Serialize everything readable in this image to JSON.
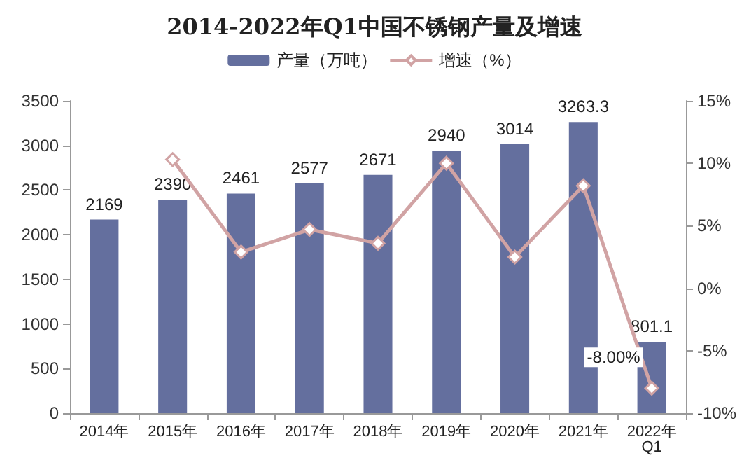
{
  "chart_data": {
    "type": "bar",
    "title": "2014-2022年Q1中国不锈钢产量及增速",
    "categories": [
      "2014年",
      "2015年",
      "2016年",
      "2017年",
      "2018年",
      "2019年",
      "2020年",
      "2021年",
      "2022年Q1"
    ],
    "series": [
      {
        "name": "产量（万吨）",
        "color": "#646f9e",
        "values": [
          2169,
          2390,
          2461,
          2577,
          2671,
          2940,
          3014,
          3263.3,
          801.1
        ],
        "value_labels": [
          "2169",
          "2390",
          "2461",
          "2577",
          "2671",
          "2940",
          "3014",
          "3263.3",
          "801.1"
        ]
      },
      {
        "name": "增速（%）",
        "type": "line",
        "axis": "y2",
        "color": "#d1a3a4",
        "marker": "diamond",
        "values": [
          null,
          10.3,
          2.9,
          4.7,
          3.6,
          10.0,
          2.5,
          8.2,
          -8.0
        ],
        "value_labels": [
          null,
          null,
          null,
          null,
          null,
          null,
          null,
          null,
          "-8.00%"
        ]
      }
    ],
    "ylim": [
      0,
      3500
    ],
    "yticks": [
      0,
      500,
      1000,
      1500,
      2000,
      2500,
      3000,
      3500
    ],
    "y2lim": [
      -10,
      15
    ],
    "y2ticks": [
      {
        "value": -10,
        "label": "-10%"
      },
      {
        "value": -5,
        "label": "-5%"
      },
      {
        "value": 0,
        "label": "0%"
      },
      {
        "value": 5,
        "label": "5%"
      },
      {
        "value": 10,
        "label": "10%"
      },
      {
        "value": 15,
        "label": "15%"
      }
    ],
    "grid": false,
    "legend": "top"
  }
}
